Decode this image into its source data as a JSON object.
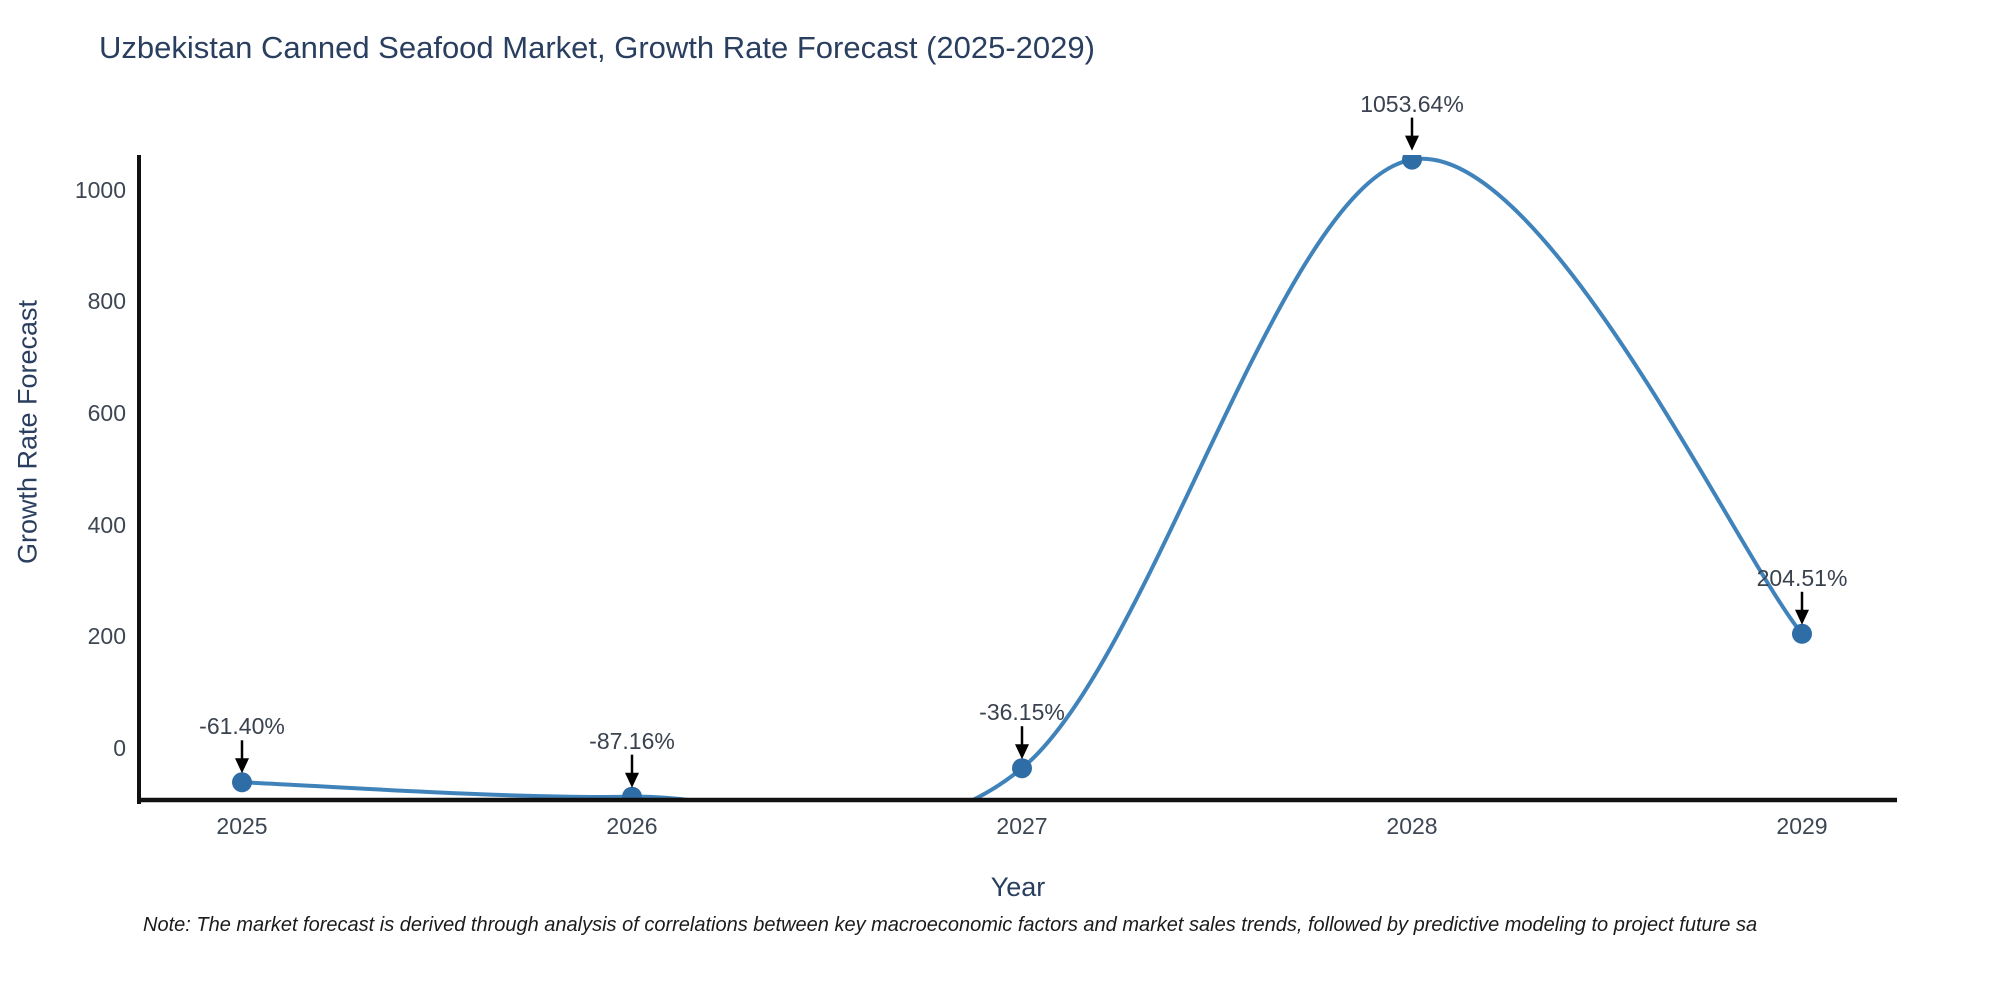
{
  "title": "Uzbekistan Canned Seafood Market, Growth Rate Forecast (2025-2029)",
  "note": "Note: The market forecast is derived through analysis of correlations between key macroeconomic factors and market sales trends, followed by predictive modeling to project future sa",
  "chart_data": {
    "type": "line",
    "title": "Uzbekistan Canned Seafood Market, Growth Rate Forecast (2025-2029)",
    "xlabel": "Year",
    "ylabel": "Growth Rate Forecast",
    "categories": [
      "2025",
      "2026",
      "2027",
      "2028",
      "2029"
    ],
    "values": [
      -61.4,
      -87.16,
      -36.15,
      1053.64,
      204.51
    ],
    "point_labels": [
      "-61.40%",
      "-87.16%",
      "-36.15%",
      "1053.64%",
      "204.51%"
    ],
    "yticks": [
      0,
      200,
      400,
      600,
      800,
      1000
    ],
    "ylim": [
      -96,
      1062
    ],
    "grid": false,
    "legend_position": "none",
    "line_shape": "spline",
    "colors": {
      "line": "#4083bb",
      "marker": "#2f6da6",
      "axis": "#111111",
      "title_text": "#2a3f5f",
      "tick_text": "#3d4653",
      "annotation_text": "#39424e",
      "arrow": "#000000"
    }
  }
}
